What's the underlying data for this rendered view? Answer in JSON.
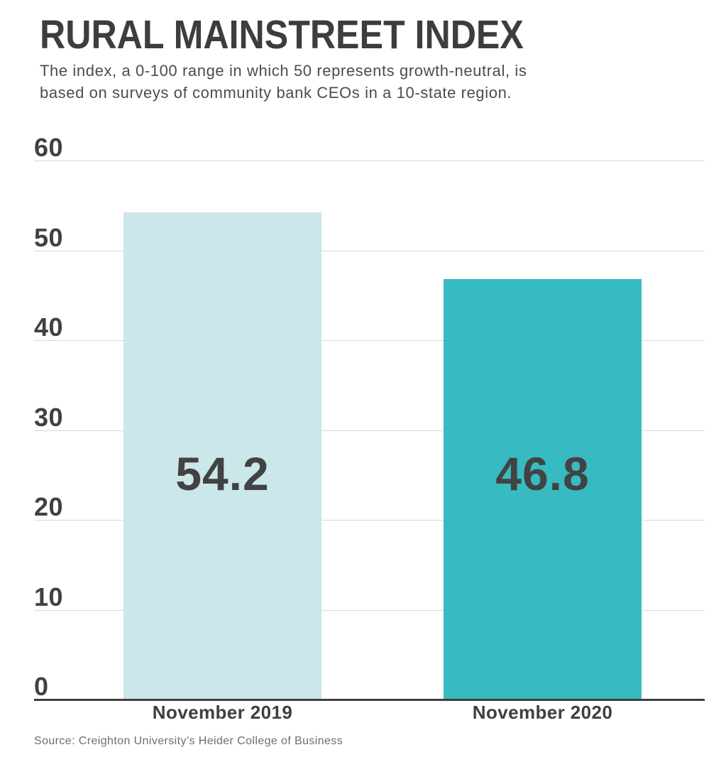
{
  "header": {
    "title": "RURAL MAINSTREET INDEX",
    "subtitle_lines": [
      "The index, a 0-100 range in which 50 represents growth-neutral, is",
      "based on surveys of community bank CEOs in a 10-state region."
    ]
  },
  "chart_data": {
    "type": "bar",
    "title": "RURAL MAINSTREET INDEX",
    "subtitle": "The index, a 0-100 range in which 50 represents growth-neutral, is based on surveys of community bank CEOs in a 10-state region.",
    "categories": [
      "November 2019",
      "November 2020"
    ],
    "values": [
      54.2,
      46.8
    ],
    "value_labels": [
      "54.2",
      "46.8"
    ],
    "bar_colors": [
      "#cbe7e9",
      "#38bac2"
    ],
    "xlabel": "",
    "ylabel": "",
    "ylim": [
      0,
      60
    ],
    "yticks": [
      0,
      10,
      20,
      30,
      40,
      50,
      60
    ],
    "grid": true,
    "legend": "none"
  },
  "source": "Source: Creighton University’s Heider College of Business",
  "colors": {
    "background": "#ffffff",
    "title_text": "#3d3d3d",
    "subtitle_text": "#4c4c4c",
    "tick_text": "#414141",
    "value_text": "#424242",
    "gridline": "#d8d8d8",
    "axis_line": "#3f3f3f",
    "source_text": "#6e6e6e",
    "bar_nov_2019": "#cbe7e9",
    "bar_nov_2020": "#38bac2"
  }
}
